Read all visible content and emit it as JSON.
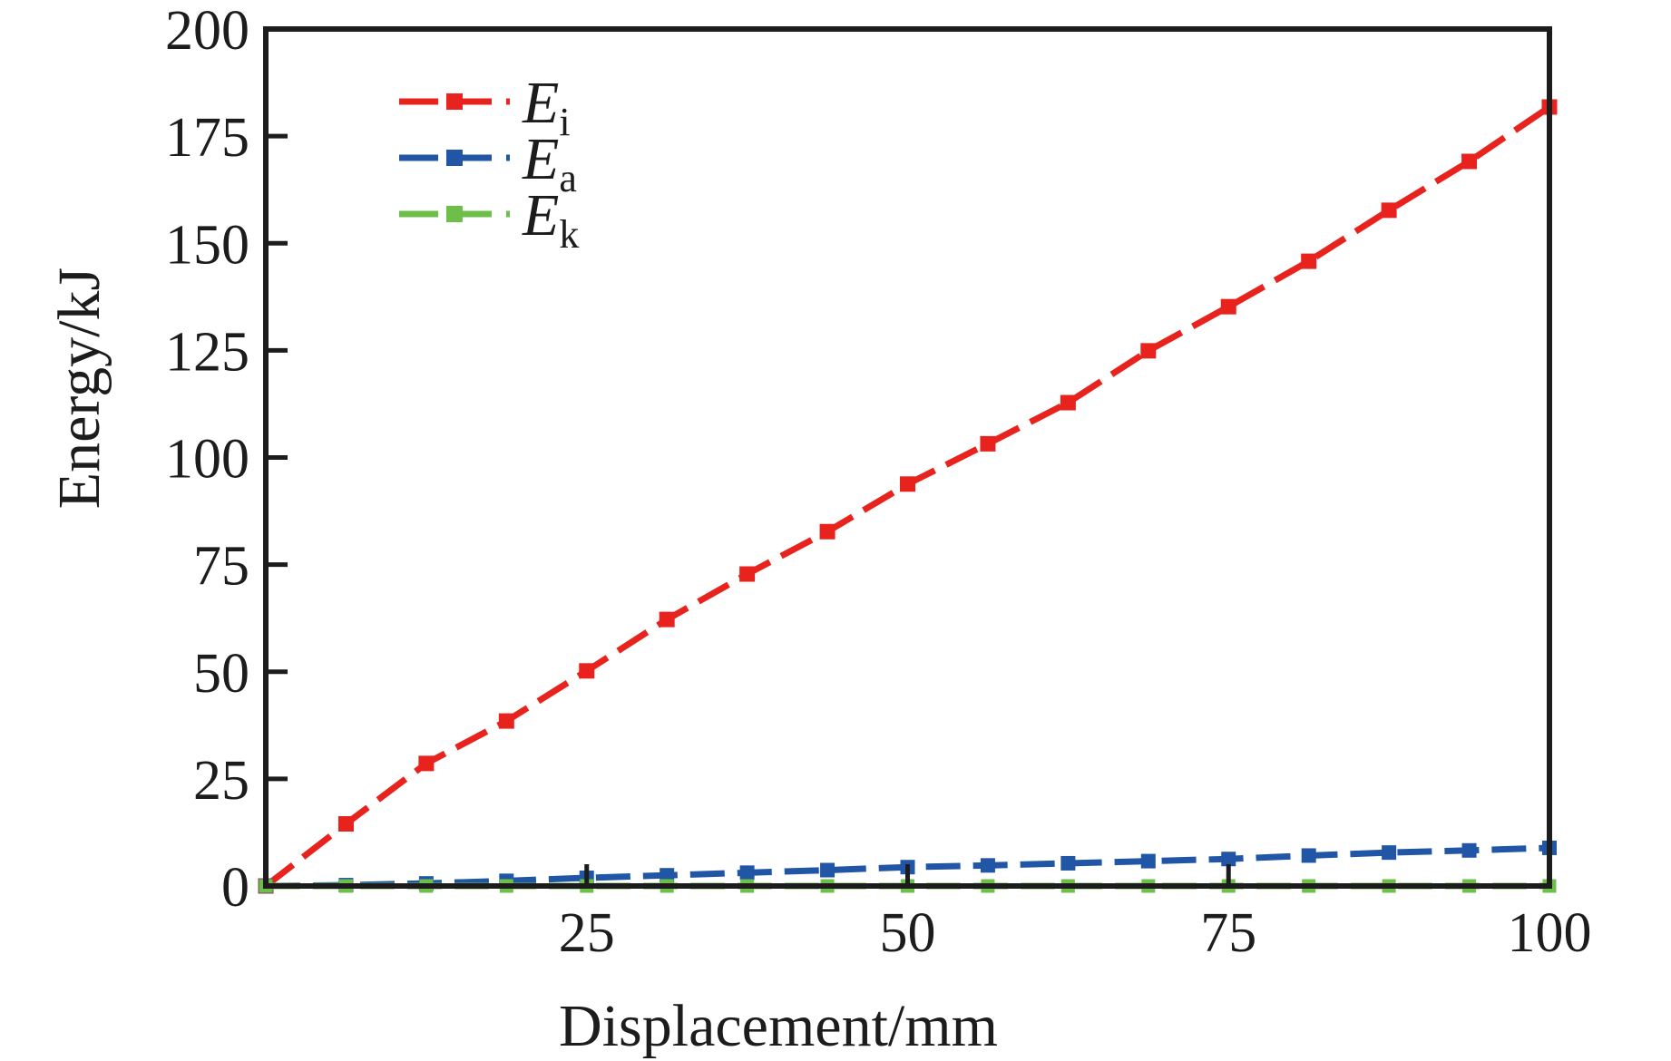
{
  "chart_data": {
    "type": "line",
    "title": "",
    "xlabel": "Displacement/mm",
    "ylabel": "Energy/kJ",
    "xlim": [
      0,
      100
    ],
    "ylim": [
      0,
      200
    ],
    "x_ticks": [
      25,
      50,
      75,
      100
    ],
    "y_ticks": [
      0,
      25,
      50,
      75,
      100,
      125,
      150,
      175,
      200
    ],
    "grid": false,
    "legend": {
      "position": "upper-left-inside",
      "items": [
        "E_i",
        "E_a",
        "E_k"
      ]
    },
    "x": [
      0,
      6.25,
      12.5,
      18.75,
      25,
      31.25,
      37.5,
      43.75,
      50,
      56.25,
      62.5,
      68.75,
      75,
      81.25,
      87.5,
      93.75,
      100
    ],
    "series": [
      {
        "label_main": "E",
        "label_sub": "i",
        "color": "#e8231e",
        "marker": "square",
        "values": [
          0,
          14.5,
          28.6,
          38.5,
          50.2,
          62.2,
          72.8,
          82.7,
          93.8,
          103.2,
          112.8,
          124.9,
          135.2,
          145.8,
          157.7,
          169.1,
          181.8
        ]
      },
      {
        "label_main": "E",
        "label_sub": "a",
        "color": "#2156a6",
        "marker": "square",
        "values": [
          0,
          0.2,
          0.6,
          1.2,
          1.9,
          2.5,
          3.1,
          3.7,
          4.4,
          4.8,
          5.3,
          5.8,
          6.3,
          7.1,
          7.8,
          8.3,
          8.9
        ]
      },
      {
        "label_main": "E",
        "label_sub": "k",
        "color": "#6ebf49",
        "marker": "square",
        "values": [
          0,
          0,
          0,
          0,
          0,
          0,
          0,
          0,
          0,
          0,
          0,
          0,
          0,
          0,
          0,
          0,
          0
        ]
      }
    ],
    "colors": {
      "axis": "#1c1c1c",
      "background": "#ffffff"
    }
  }
}
